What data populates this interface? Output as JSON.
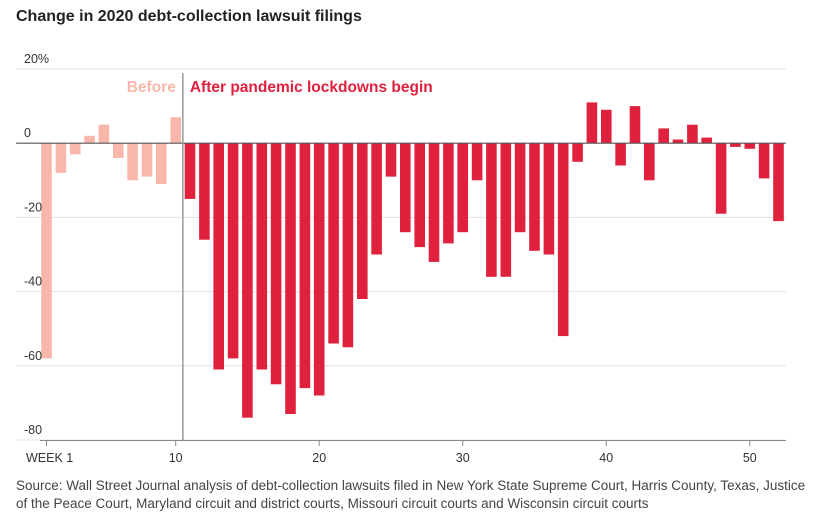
{
  "colors": {
    "before": "#f9b7ac",
    "after": "#e0213e",
    "grid": "#e3e3e3",
    "zero_line": "#555555",
    "divider": "#9a9a9a"
  },
  "chart_data": {
    "type": "bar",
    "title": "Change in 2020 debt-collection lawsuit filings",
    "xlabel": "",
    "ylabel": "",
    "ylim": [
      -80,
      20
    ],
    "y_ticks": [
      {
        "value": 20,
        "label": "20%"
      },
      {
        "value": 0,
        "label": "0"
      },
      {
        "value": -20,
        "label": "-20"
      },
      {
        "value": -40,
        "label": "-40"
      },
      {
        "value": -60,
        "label": "-60"
      },
      {
        "value": -80,
        "label": "-80"
      }
    ],
    "x_ticks": [
      {
        "value": 1,
        "label": "WEEK 1"
      },
      {
        "value": 10,
        "label": "10"
      },
      {
        "value": 20,
        "label": "20"
      },
      {
        "value": 30,
        "label": "30"
      },
      {
        "value": 40,
        "label": "40"
      },
      {
        "value": 50,
        "label": "50"
      }
    ],
    "divider_after_week": 10.5,
    "annotations": {
      "before": "Before",
      "after": "After pandemic lockdowns begin"
    },
    "series": [
      {
        "name": "Before",
        "weeks": [
          1,
          2,
          3,
          4,
          5,
          6,
          7,
          8,
          9,
          10
        ],
        "values": [
          -58,
          -8,
          -3,
          2,
          5,
          -4,
          -10,
          -9,
          -11,
          7
        ]
      },
      {
        "name": "After pandemic lockdowns begin",
        "weeks": [
          11,
          12,
          13,
          14,
          15,
          16,
          17,
          18,
          19,
          20,
          21,
          22,
          23,
          24,
          25,
          26,
          27,
          28,
          29,
          30,
          31,
          32,
          33,
          34,
          35,
          36,
          37,
          38,
          39,
          40,
          41,
          42,
          43,
          44,
          45,
          46,
          47,
          48,
          49,
          50,
          51,
          52
        ],
        "values": [
          -15,
          -26,
          -61,
          -58,
          -74,
          -61,
          -65,
          -73,
          -66,
          -68,
          -54,
          -55,
          -42,
          -30,
          -9,
          -24,
          -28,
          -32,
          -27,
          -24,
          -10,
          -36,
          -36,
          -24,
          -29,
          -30,
          -52,
          -5,
          11,
          9,
          -6,
          10,
          -10,
          4,
          1,
          5,
          1.5,
          -19,
          -1,
          -1.5,
          -9.5,
          -21
        ]
      }
    ]
  },
  "source": "Source: Wall Street Journal analysis of debt-collection lawsuits filed in New York State Supreme Court, Harris County, Texas, Justice of the Peace Court, Maryland circuit and district courts, Missouri circuit courts and Wisconsin circuit courts"
}
